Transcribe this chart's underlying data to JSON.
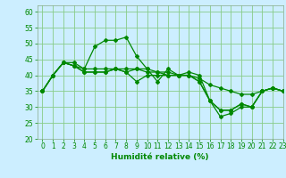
{
  "xlabel": "Humidité relative (%)",
  "background_color": "#cceeff",
  "grid_color": "#88cc88",
  "line_color": "#008800",
  "xlim": [
    -0.5,
    23
  ],
  "ylim": [
    20,
    62
  ],
  "yticks": [
    20,
    25,
    30,
    35,
    40,
    45,
    50,
    55,
    60
  ],
  "xticks": [
    0,
    1,
    2,
    3,
    4,
    5,
    6,
    7,
    8,
    9,
    10,
    11,
    12,
    13,
    14,
    15,
    16,
    17,
    18,
    19,
    20,
    21,
    22,
    23
  ],
  "series": [
    [
      35,
      40,
      44,
      44,
      42,
      49,
      51,
      51,
      52,
      46,
      42,
      38,
      42,
      40,
      41,
      40,
      32,
      27,
      28,
      30,
      30,
      35,
      36,
      35
    ],
    [
      35,
      40,
      44,
      43,
      42,
      42,
      42,
      42,
      42,
      42,
      42,
      41,
      41,
      40,
      40,
      39,
      37,
      36,
      35,
      34,
      34,
      35,
      36,
      35
    ],
    [
      35,
      40,
      44,
      43,
      41,
      41,
      41,
      42,
      41,
      42,
      41,
      41,
      40,
      40,
      40,
      38,
      32,
      29,
      29,
      31,
      30,
      35,
      36,
      35
    ],
    [
      35,
      40,
      44,
      43,
      41,
      41,
      41,
      42,
      41,
      38,
      40,
      40,
      40,
      40,
      40,
      38,
      32,
      29,
      29,
      31,
      30,
      35,
      36,
      35
    ]
  ]
}
